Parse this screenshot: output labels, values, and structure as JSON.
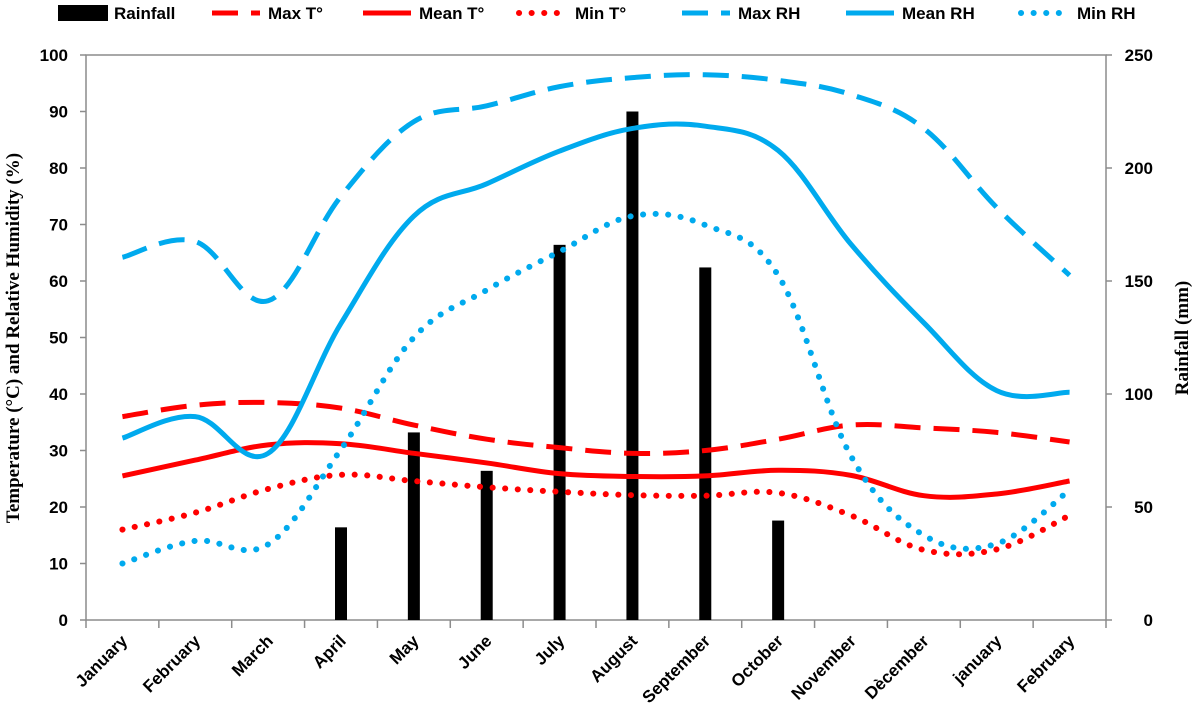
{
  "chart_data": {
    "type": "bar+line",
    "categories": [
      "January",
      "February",
      "March",
      "April",
      "May",
      "June",
      "July",
      "August",
      "September",
      "October",
      "November",
      "Dècember",
      "january",
      "February"
    ],
    "ylabel": "Temperature (°C) and Relative Humidity (%)",
    "y2label": "Rainfall (mm)",
    "ylim": [
      0,
      100
    ],
    "y2lim": [
      0,
      250
    ],
    "yticks": [
      0,
      10,
      20,
      30,
      40,
      50,
      60,
      70,
      80,
      90,
      100
    ],
    "y2ticks": [
      0,
      50,
      100,
      150,
      200,
      250
    ],
    "grid": false,
    "legend_position": "top",
    "bars": {
      "name": "Rainfall",
      "axis": "right",
      "color": "#000000",
      "values": [
        0,
        0,
        0,
        41,
        83,
        66,
        166,
        225,
        156,
        44,
        0,
        0,
        0,
        0
      ]
    },
    "series": [
      {
        "name": "Max T°",
        "axis": "left",
        "color": "#ff0000",
        "style": "dashed",
        "values": [
          36,
          38,
          38.5,
          37.5,
          34.5,
          32,
          30.5,
          29.5,
          30,
          32,
          34.5,
          34,
          33.2,
          31.5
        ]
      },
      {
        "name": "Mean T°",
        "axis": "left",
        "color": "#ff0000",
        "style": "solid",
        "values": [
          25.5,
          28.3,
          31,
          31.2,
          29.5,
          27.8,
          25.9,
          25.4,
          25.5,
          26.5,
          25.6,
          22,
          22.3,
          24.6
        ]
      },
      {
        "name": "Min T°",
        "axis": "left",
        "color": "#ff0000",
        "style": "dotted",
        "values": [
          16,
          19,
          23.2,
          25.7,
          24.6,
          23.5,
          22.7,
          22.1,
          22,
          22.5,
          18.5,
          12.4,
          12.5,
          18.5
        ]
      },
      {
        "name": "Max RH",
        "axis": "left",
        "color": "#00aaee",
        "style": "dashed",
        "values": [
          64.2,
          67,
          56.5,
          75,
          88.2,
          91,
          94.4,
          96,
          96.5,
          95.5,
          93,
          87,
          73,
          61
        ]
      },
      {
        "name": "Mean RH",
        "axis": "left",
        "color": "#00aaee",
        "style": "solid",
        "values": [
          32.2,
          36,
          29.5,
          52.5,
          71.5,
          77.2,
          83,
          87,
          87.4,
          83.1,
          66.5,
          52.6,
          40.6,
          40.3
        ]
      },
      {
        "name": "Min RH",
        "axis": "left",
        "color": "#00aaee",
        "style": "dotted",
        "values": [
          10,
          14,
          13.4,
          30.2,
          50,
          58.4,
          65.2,
          71.5,
          69.9,
          61,
          29,
          15,
          13.5,
          23
        ]
      }
    ]
  }
}
